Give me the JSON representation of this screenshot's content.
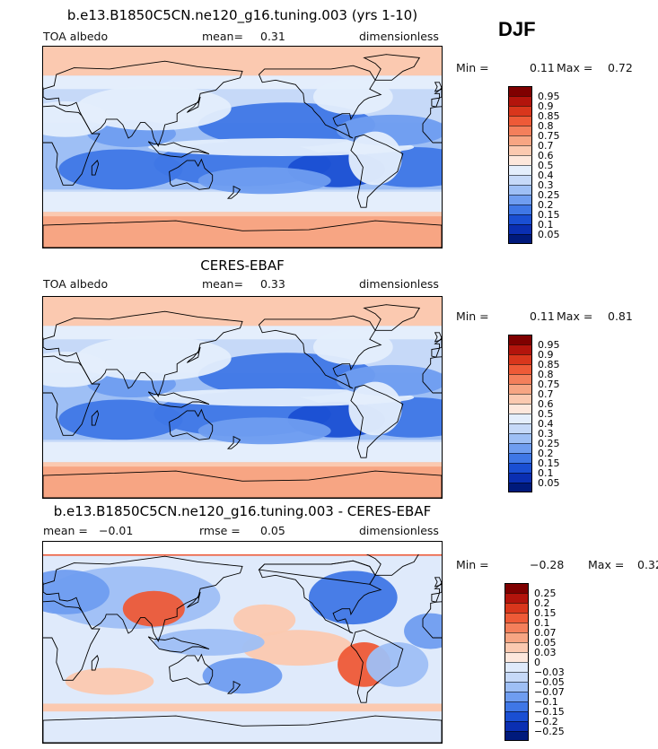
{
  "season": "DJF",
  "panels": [
    {
      "title": "b.e13.B1850C5CN.ne120_g16.tuning.003 (yrs 1-10)",
      "variable": "TOA albedo",
      "mean_label": "mean=",
      "mean_value": "0.31",
      "units": "dimensionless",
      "min_label": "Min =",
      "min_value": "0.11",
      "max_label": "Max =",
      "max_value": "0.72",
      "colorbar": [
        "0.95",
        "0.9",
        "0.85",
        "0.8",
        "0.75",
        "0.7",
        "0.6",
        "0.5",
        "0.4",
        "0.3",
        "0.25",
        "0.2",
        "0.15",
        "0.1",
        "0.05"
      ]
    },
    {
      "title": "CERES-EBAF",
      "variable": "TOA albedo",
      "mean_label": "mean=",
      "mean_value": "0.33",
      "units": "dimensionless",
      "min_label": "Min =",
      "min_value": "0.11",
      "max_label": "Max =",
      "max_value": "0.81",
      "colorbar": [
        "0.95",
        "0.9",
        "0.85",
        "0.8",
        "0.75",
        "0.7",
        "0.6",
        "0.5",
        "0.4",
        "0.3",
        "0.25",
        "0.2",
        "0.15",
        "0.1",
        "0.05"
      ]
    },
    {
      "title": "b.e13.B1850C5CN.ne120_g16.tuning.003 - CERES-EBAF",
      "mean_label": "mean =",
      "mean_value": "−0.01",
      "rmse_label": "rmse =",
      "rmse_value": "0.05",
      "units": "dimensionless",
      "min_label": "Min =",
      "min_value": "−0.28",
      "max_label": "Max =",
      "max_value": "0.32",
      "colorbar": [
        "0.25",
        "0.2",
        "0.15",
        "0.1",
        "0.07",
        "0.05",
        "0.03",
        "0",
        "−0.03",
        "−0.05",
        "−0.07",
        "−0.1",
        "−0.15",
        "−0.2",
        "−0.25"
      ]
    }
  ],
  "colors": {
    "abs_scale": [
      "#7f0000",
      "#b3140c",
      "#d9361c",
      "#ee5a37",
      "#f47f5b",
      "#f7a583",
      "#fbc9b0",
      "#fde7dc",
      "#e4eefc",
      "#c6d9f8",
      "#9ebff5",
      "#6f9df0",
      "#3f77e6",
      "#1a4fd3",
      "#0a2fb2",
      "#001a7c"
    ],
    "diff_scale": [
      "#7f0000",
      "#b3140c",
      "#d9361c",
      "#ee5a37",
      "#f47f5b",
      "#f7a583",
      "#fbc9b0",
      "#fde7dc",
      "#dfeafb",
      "#c6d9f8",
      "#9ebff5",
      "#6f9df0",
      "#3f77e6",
      "#1a4fd3",
      "#0a2fb2",
      "#001a7c"
    ]
  },
  "chart_data": [
    {
      "type": "heatmap",
      "title": "b.e13.B1850C5CN.ne120_g16.tuning.003 (yrs 1-10)",
      "field": "TOA albedo",
      "units": "dimensionless",
      "mean": 0.31,
      "min": 0.11,
      "max": 0.72,
      "contour_levels": [
        0.05,
        0.1,
        0.15,
        0.2,
        0.25,
        0.3,
        0.4,
        0.5,
        0.6,
        0.7,
        0.75,
        0.8,
        0.85,
        0.9,
        0.95
      ]
    },
    {
      "type": "heatmap",
      "title": "CERES-EBAF",
      "field": "TOA albedo",
      "units": "dimensionless",
      "mean": 0.33,
      "min": 0.11,
      "max": 0.81,
      "contour_levels": [
        0.05,
        0.1,
        0.15,
        0.2,
        0.25,
        0.3,
        0.4,
        0.5,
        0.6,
        0.7,
        0.75,
        0.8,
        0.85,
        0.9,
        0.95
      ]
    },
    {
      "type": "heatmap",
      "title": "b.e13.B1850C5CN.ne120_g16.tuning.003 - CERES-EBAF",
      "units": "dimensionless",
      "mean": -0.01,
      "rmse": 0.05,
      "min": -0.28,
      "max": 0.32,
      "contour_levels": [
        -0.25,
        -0.2,
        -0.15,
        -0.1,
        -0.07,
        -0.05,
        -0.03,
        0,
        0.03,
        0.05,
        0.07,
        0.1,
        0.15,
        0.2,
        0.25
      ]
    }
  ]
}
